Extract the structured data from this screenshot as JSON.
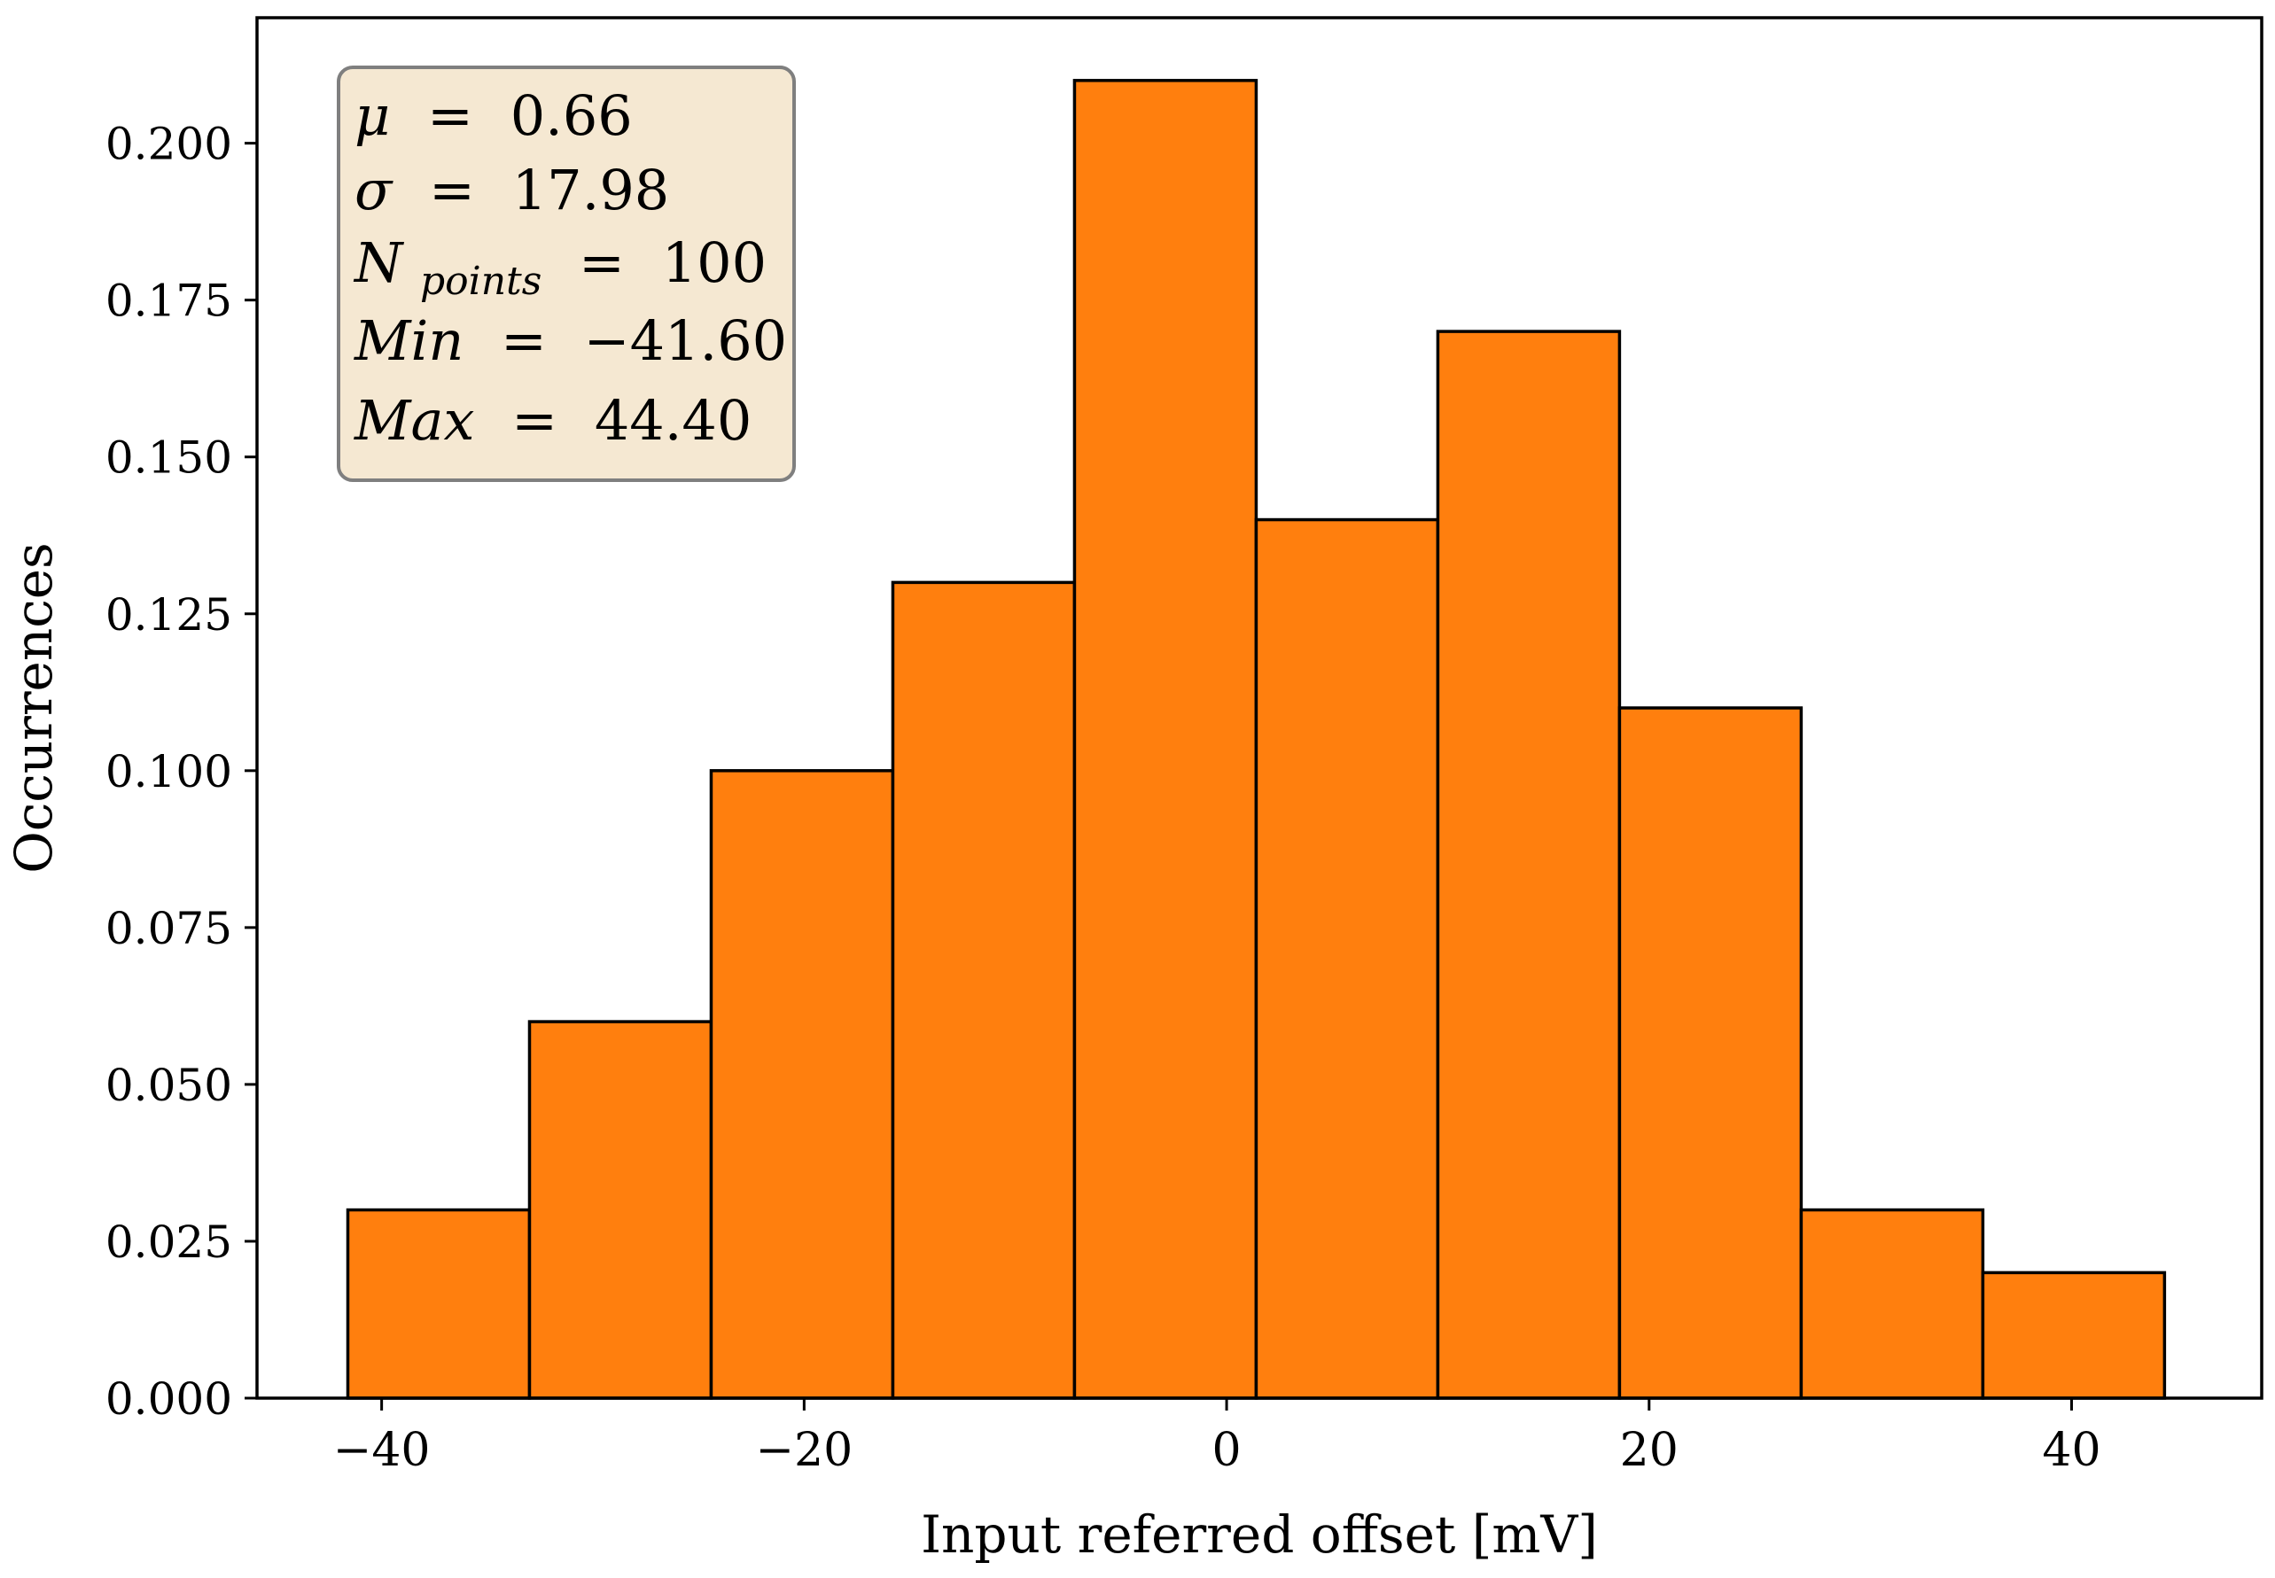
{
  "chart_data": {
    "type": "bar",
    "subtype": "histogram",
    "xlabel": "Input referred offset [mV]",
    "ylabel": "Occurrences",
    "xlim": [
      -45.9,
      49.0
    ],
    "ylim": [
      0,
      0.22
    ],
    "xticks": [
      -40,
      -20,
      0,
      20,
      40
    ],
    "xtick_labels": [
      "−40",
      "−20",
      "0",
      "20",
      "40"
    ],
    "yticks": [
      0,
      0.025,
      0.05,
      0.075,
      0.1,
      0.125,
      0.15,
      0.175,
      0.2
    ],
    "ytick_labels": [
      "0.000",
      "0.025",
      "0.050",
      "0.075",
      "0.100",
      "0.125",
      "0.150",
      "0.175",
      "0.200"
    ],
    "bin_edges": [
      -41.6,
      -33.0,
      -24.4,
      -15.8,
      -7.2,
      1.4,
      10.0,
      18.6,
      27.2,
      35.8,
      44.4
    ],
    "values": [
      0.03,
      0.06,
      0.1,
      0.13,
      0.21,
      0.14,
      0.17,
      0.11,
      0.03,
      0.02
    ],
    "bar_color": "#ff7f0e",
    "edge_color": "#000000",
    "grid": false,
    "stats_box": {
      "mu_symbol": "μ",
      "mu_value": "0.66",
      "sigma_symbol": "σ",
      "sigma_value": "17.98",
      "n_symbol": "N",
      "n_subscript": "points",
      "n_value": "100",
      "min_label": "Min",
      "min_value": "−41.60",
      "max_label": "Max",
      "max_value": "44.40",
      "equals": "=",
      "placement": "top-left",
      "background": "#f5e8d2",
      "border": "#7f7f7f"
    }
  }
}
